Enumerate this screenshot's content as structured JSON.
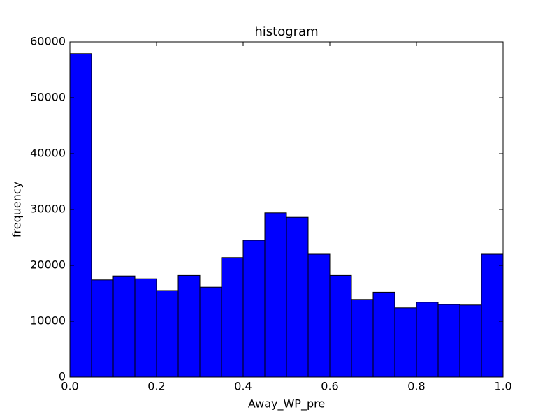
{
  "chart_data": {
    "type": "histogram",
    "title": "histogram",
    "xlabel": "Away_WP_pre",
    "ylabel": "frequency",
    "bins": [
      0,
      0.05,
      0.1,
      0.15,
      0.2,
      0.25,
      0.3,
      0.35,
      0.4,
      0.45,
      0.5,
      0.55,
      0.6,
      0.65,
      0.7,
      0.75,
      0.8,
      0.85,
      0.9,
      0.95,
      1.0
    ],
    "values": [
      57900,
      17400,
      18100,
      17600,
      15500,
      18200,
      16100,
      21400,
      24500,
      29400,
      28600,
      22000,
      18200,
      13900,
      15200,
      12400,
      13400,
      13000,
      12900,
      22000
    ],
    "color": "#0000ff",
    "xlim": [
      0,
      1
    ],
    "xticks": [
      {
        "value": 0,
        "label": "0.0"
      },
      0.2,
      0.4,
      0.6,
      0.8,
      {
        "value": 1,
        "label": "1.0"
      }
    ],
    "ylim": [
      0,
      60000
    ],
    "yticks": [
      0,
      10000,
      20000,
      30000,
      40000,
      50000,
      60000
    ]
  }
}
